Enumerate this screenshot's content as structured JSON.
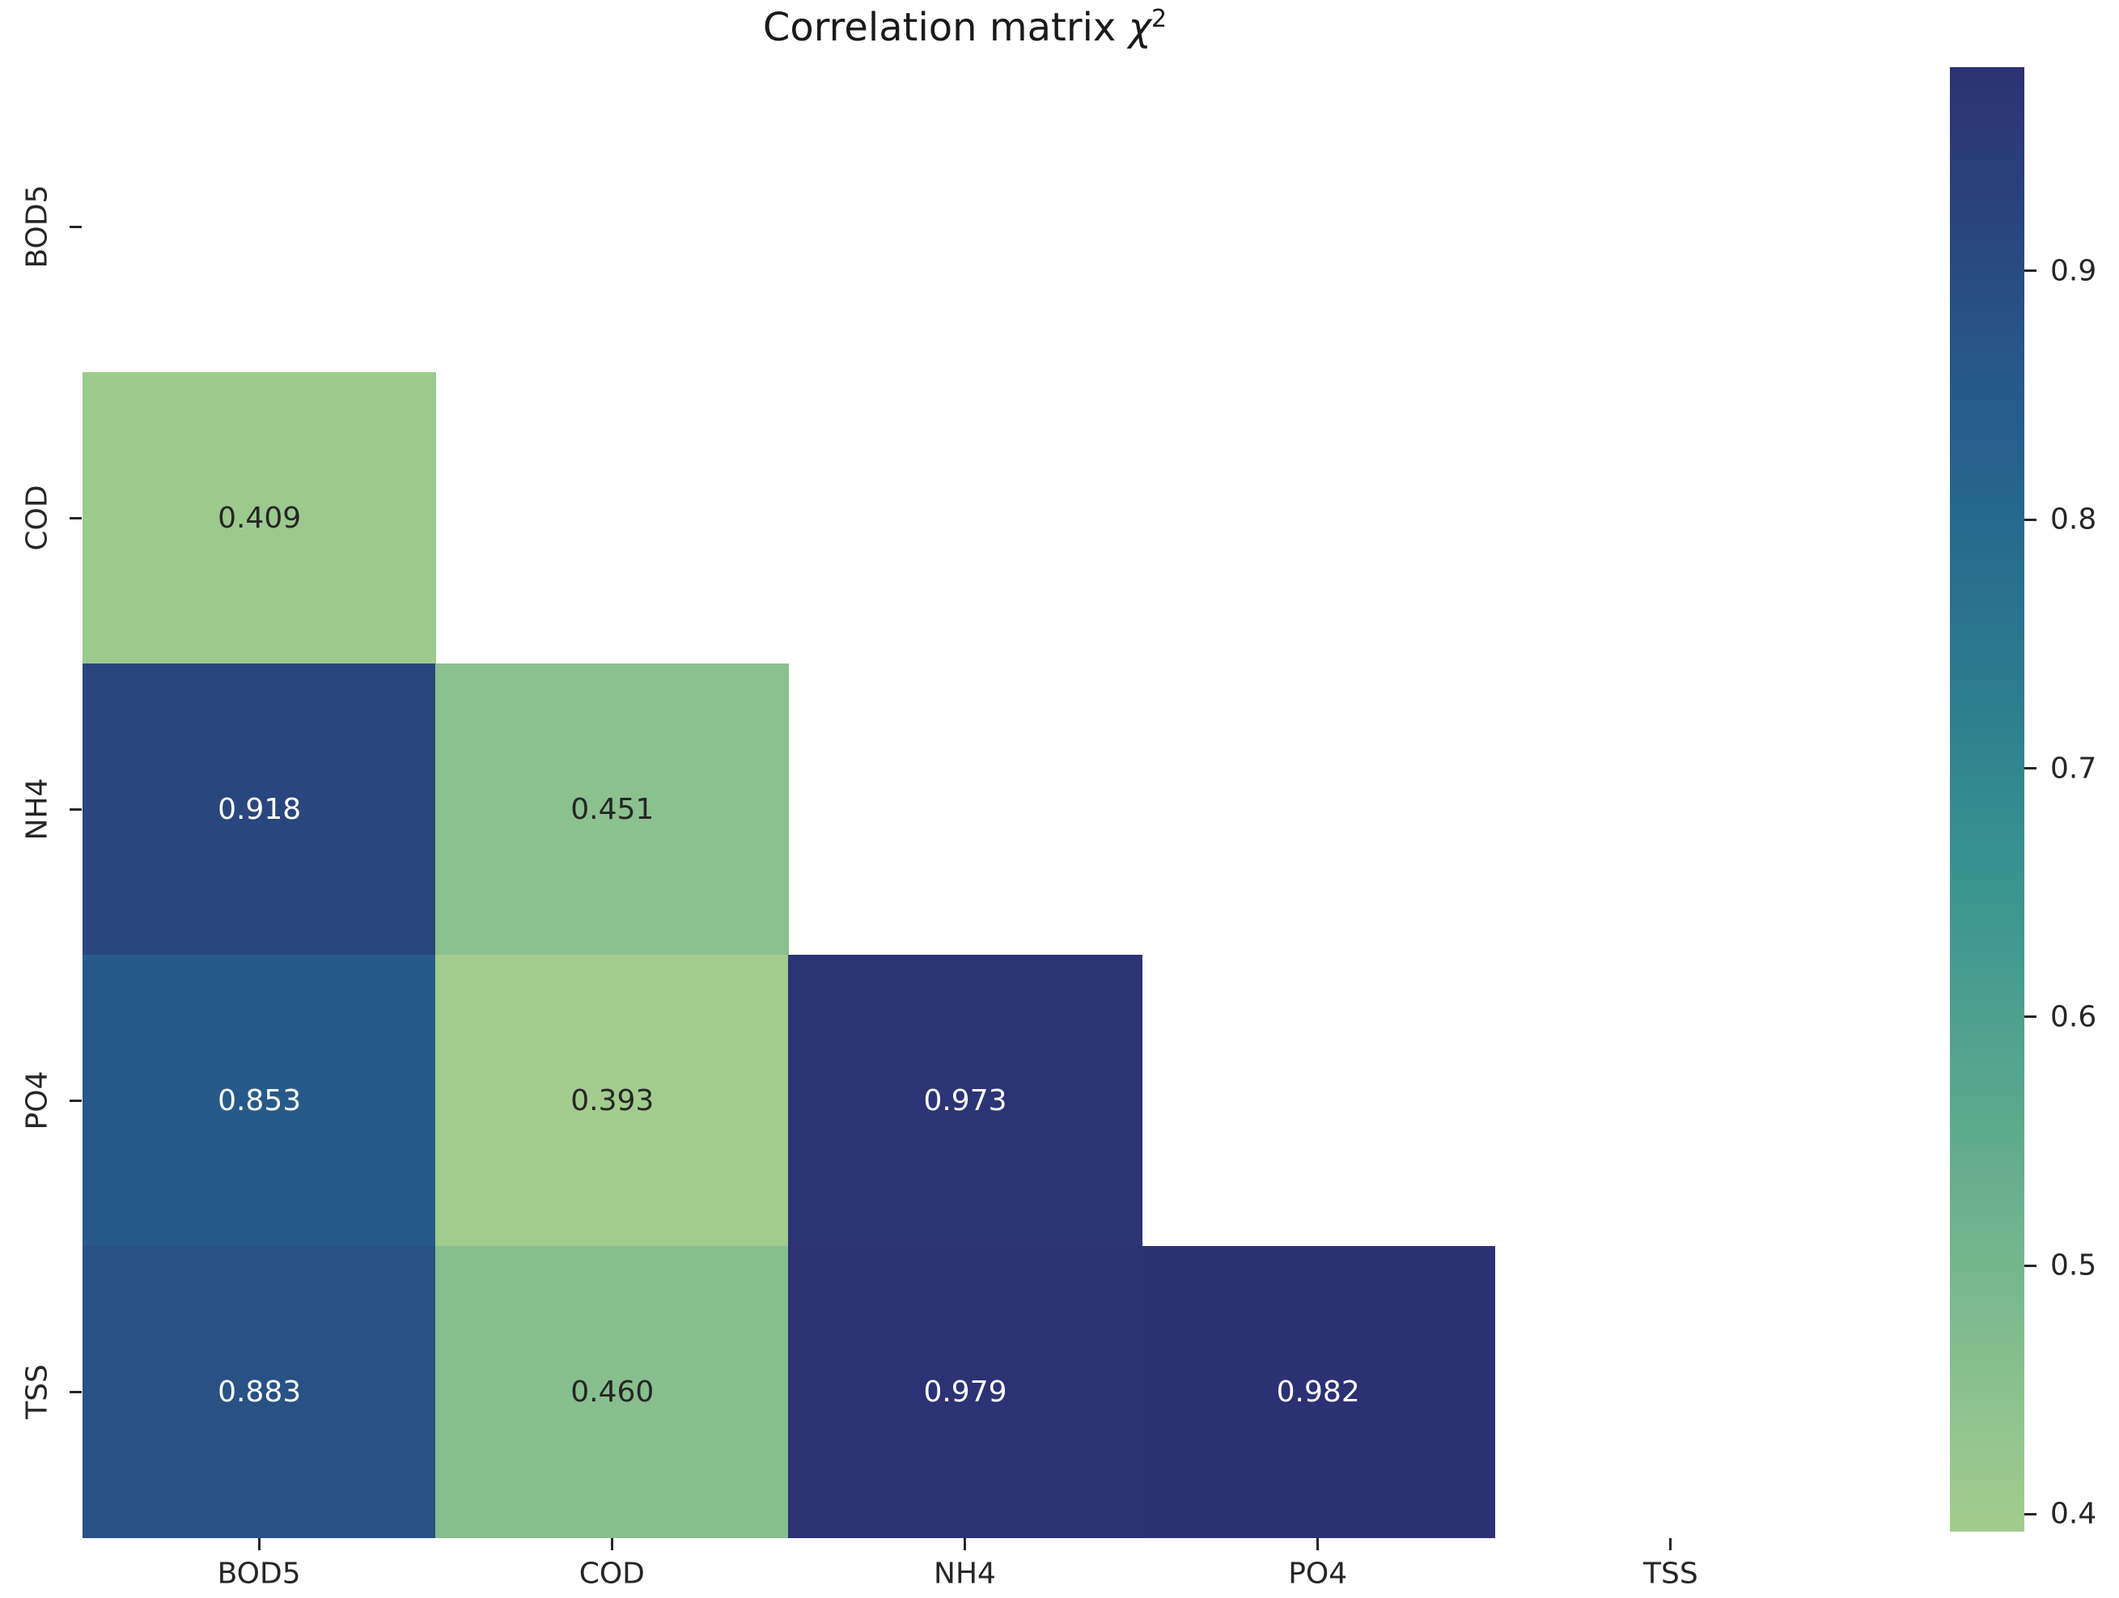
{
  "figure": {
    "background": "#ffffff",
    "title": {
      "prefix": "Correlation matrix ",
      "symbol": "χ",
      "superscript": "2",
      "full_text": "Correlation matrix χ²"
    }
  },
  "chart_data": {
    "type": "heatmap",
    "title": "Correlation matrix χ²",
    "variables": [
      "BOD5",
      "COD",
      "NH4",
      "PO4",
      "TSS"
    ],
    "x_tick_labels": [
      "BOD5",
      "COD",
      "NH4",
      "PO4",
      "TSS"
    ],
    "y_tick_labels": [
      "BOD5",
      "COD",
      "NH4",
      "PO4",
      "TSS"
    ],
    "mask": "upper triangle and diagonal hidden (lower-triangle heatmap)",
    "matrix": [
      [
        null,
        null,
        null,
        null,
        null
      ],
      [
        0.409,
        null,
        null,
        null,
        null
      ],
      [
        0.918,
        0.451,
        null,
        null,
        null
      ],
      [
        0.853,
        0.393,
        0.973,
        null,
        null
      ],
      [
        0.883,
        0.46,
        0.979,
        0.982,
        null
      ]
    ],
    "value_format_decimals": 3,
    "vmin": 0.393,
    "vmax": 0.982,
    "grid": false,
    "colorbar": {
      "position": "right",
      "ticks": [
        0.9,
        0.8,
        0.7,
        0.6,
        0.5,
        0.4
      ]
    },
    "colormap": {
      "name": "crest-like (light green to dark navy)",
      "stops": [
        {
          "t": 0.0,
          "color": "#a3cd8e"
        },
        {
          "t": 0.15,
          "color": "#7eba8e"
        },
        {
          "t": 0.3,
          "color": "#58a78d"
        },
        {
          "t": 0.45,
          "color": "#389390"
        },
        {
          "t": 0.6,
          "color": "#2a788e"
        },
        {
          "t": 0.75,
          "color": "#265f8c"
        },
        {
          "t": 0.875,
          "color": "#294980"
        },
        {
          "t": 1.0,
          "color": "#2c3173"
        }
      ]
    },
    "annotation_text_colors": {
      "on_dark_cells": "#ffffff",
      "on_light_cells": "#262626"
    },
    "tick_color": "#262626"
  }
}
